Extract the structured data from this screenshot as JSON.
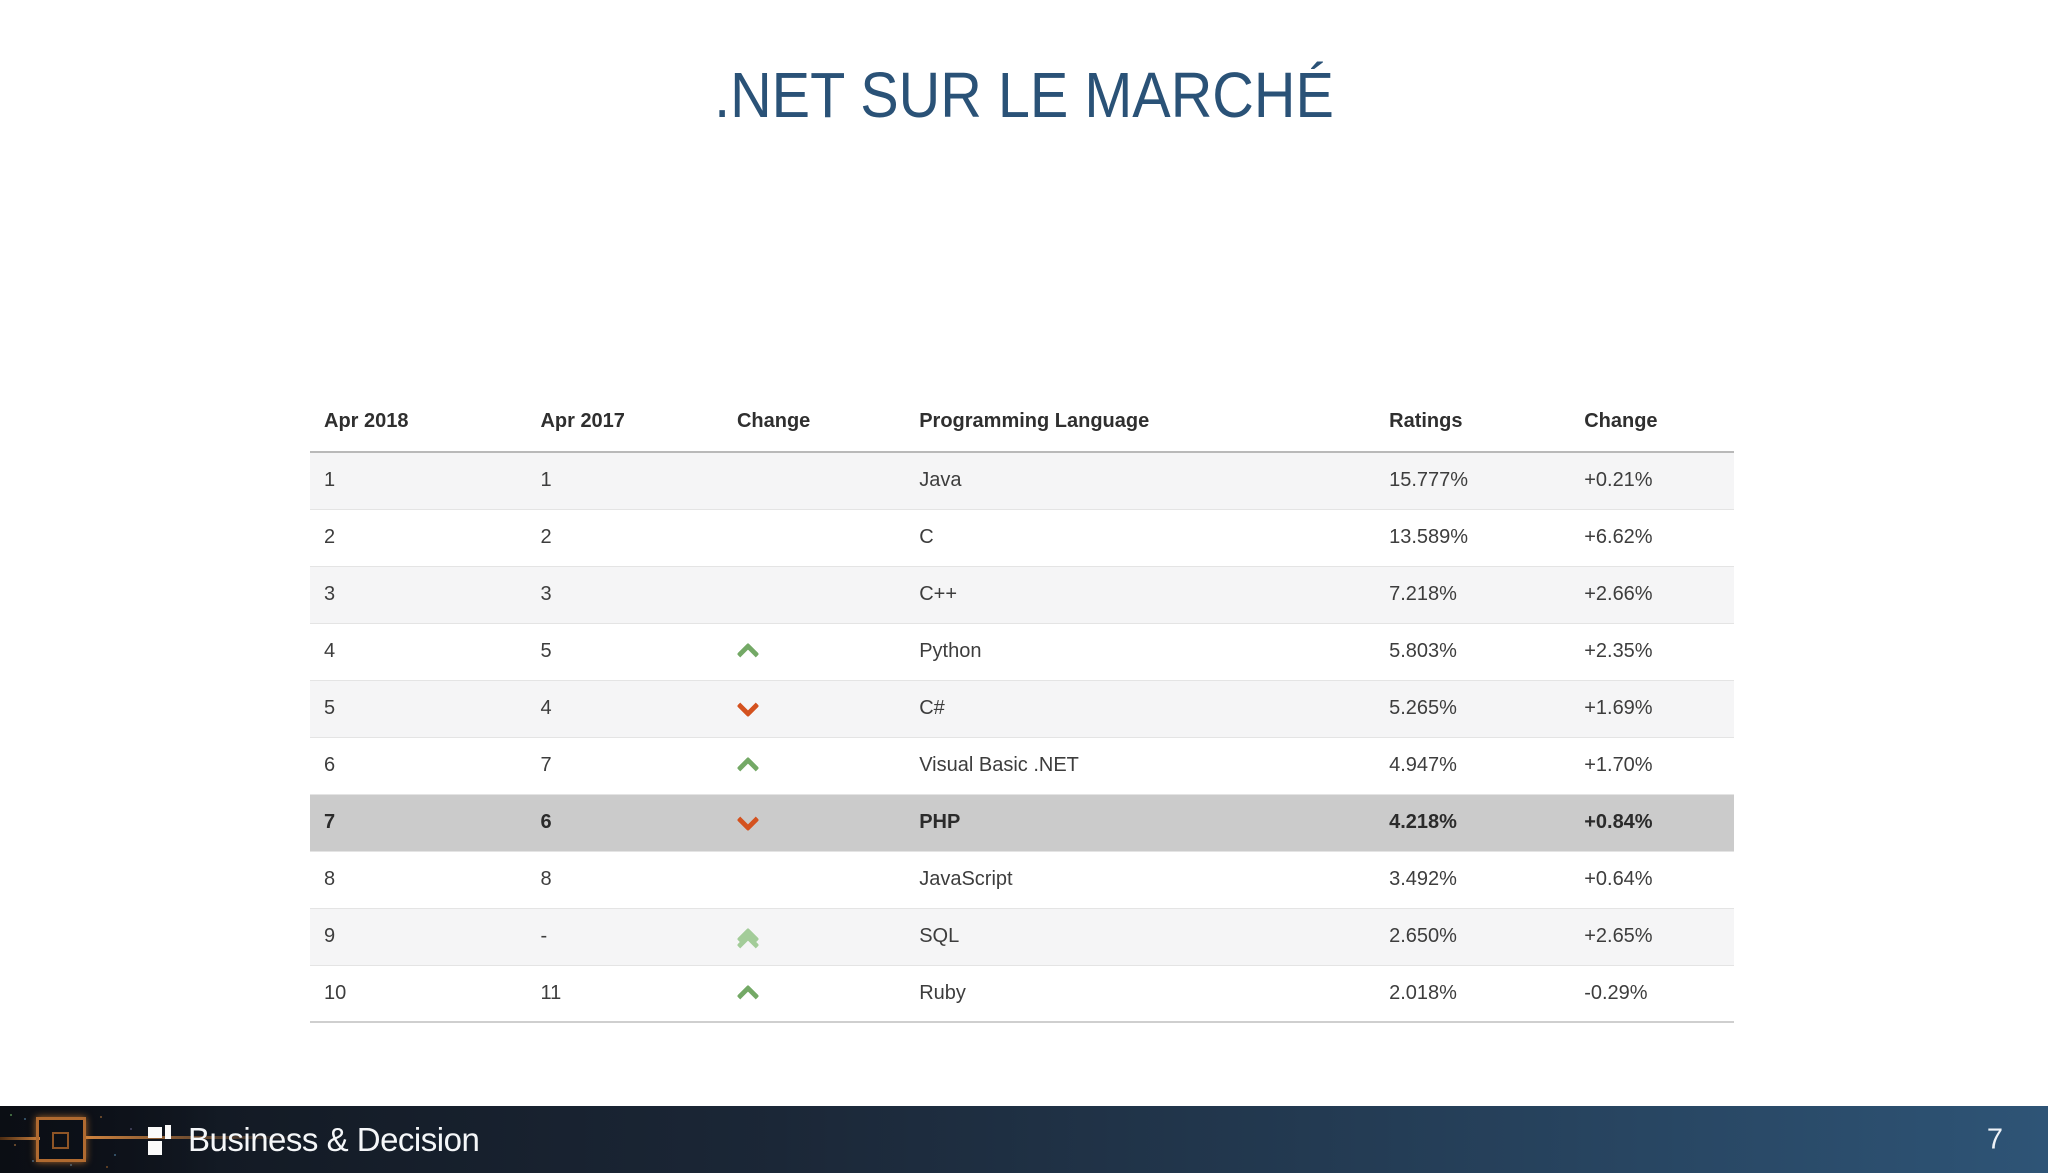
{
  "title": ".NET SUR LE MARCHÉ",
  "table": {
    "headers": [
      "Apr 2018",
      "Apr 2017",
      "Change",
      "Programming Language",
      "Ratings",
      "Change"
    ],
    "rows": [
      {
        "rank_2018": "1",
        "rank_2017": "1",
        "direction": "none",
        "language": "Java",
        "ratings": "15.777%",
        "change": "+0.21%",
        "highlighted": false
      },
      {
        "rank_2018": "2",
        "rank_2017": "2",
        "direction": "none",
        "language": "C",
        "ratings": "13.589%",
        "change": "+6.62%",
        "highlighted": false
      },
      {
        "rank_2018": "3",
        "rank_2017": "3",
        "direction": "none",
        "language": "C++",
        "ratings": "7.218%",
        "change": "+2.66%",
        "highlighted": false
      },
      {
        "rank_2018": "4",
        "rank_2017": "5",
        "direction": "up",
        "language": "Python",
        "ratings": "5.803%",
        "change": "+2.35%",
        "highlighted": false
      },
      {
        "rank_2018": "5",
        "rank_2017": "4",
        "direction": "down",
        "language": "C#",
        "ratings": "5.265%",
        "change": "+1.69%",
        "highlighted": false
      },
      {
        "rank_2018": "6",
        "rank_2017": "7",
        "direction": "up",
        "language": "Visual Basic .NET",
        "ratings": "4.947%",
        "change": "+1.70%",
        "highlighted": false
      },
      {
        "rank_2018": "7",
        "rank_2017": "6",
        "direction": "down",
        "language": "PHP",
        "ratings": "4.218%",
        "change": "+0.84%",
        "highlighted": true
      },
      {
        "rank_2018": "8",
        "rank_2017": "8",
        "direction": "none",
        "language": "JavaScript",
        "ratings": "3.492%",
        "change": "+0.64%",
        "highlighted": false
      },
      {
        "rank_2018": "9",
        "rank_2017": "-",
        "direction": "double-up",
        "language": "SQL",
        "ratings": "2.650%",
        "change": "+2.65%",
        "highlighted": false
      },
      {
        "rank_2018": "10",
        "rank_2017": "11",
        "direction": "up",
        "language": "Ruby",
        "ratings": "2.018%",
        "change": "-0.29%",
        "highlighted": false
      }
    ]
  },
  "footer": {
    "brand": "Business & Decision",
    "page_number": "7"
  },
  "colors": {
    "title": "#2a5277",
    "up_arrow": "#74a966",
    "double_up_arrow": "#a3cc99",
    "down_arrow": "#d4521f",
    "highlight_row": "#cbcbcb",
    "footer_gradient_start": "#10151d",
    "footer_gradient_end": "#2e5476"
  }
}
